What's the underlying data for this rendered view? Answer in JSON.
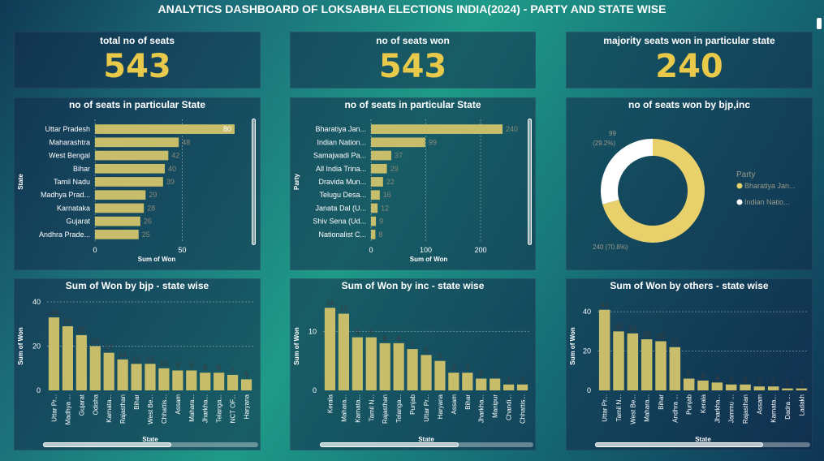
{
  "title": "ANALYTICS DASHBOARD OF LOKSABHA ELECTIONS INDIA(2024) - PARTY AND STATE WISE",
  "colors": {
    "bar": "#c8bd6a",
    "gold": "#e8c94a",
    "white": "#ffffff",
    "label": "#3c3c3c"
  },
  "cards": [
    {
      "label": "total no of seats",
      "value": "543"
    },
    {
      "label": "no of seats won",
      "value": "543"
    },
    {
      "label": "majority seats won in particular state",
      "value": "240"
    }
  ],
  "chart_data": [
    {
      "type": "bar",
      "orientation": "horizontal",
      "title": "no of seats in particular State",
      "ylabel": "State",
      "xlabel": "Sum of Won",
      "categories": [
        "Uttar Pradesh",
        "Maharashtra",
        "West Bengal",
        "Bihar",
        "Tamil Nadu",
        "Madhya Prad...",
        "Karnataka",
        "Gujarat",
        "Andhra Prade..."
      ],
      "values": [
        80,
        48,
        42,
        40,
        39,
        29,
        28,
        26,
        25
      ],
      "xlim": [
        0,
        80
      ],
      "xticks": [
        0,
        50
      ]
    },
    {
      "type": "bar",
      "orientation": "horizontal",
      "title": "no of seats in particular State",
      "ylabel": "Party",
      "xlabel": "Sum of Won",
      "categories": [
        "Bharatiya Jan...",
        "Indian Nation...",
        "Samajwadi Pa...",
        "All India Trina...",
        "Dravida Mun...",
        "Telugu Desa...",
        "Janata Dal (U...",
        "Shiv Sena (Ud...",
        "Nationalist C..."
      ],
      "values": [
        240,
        99,
        37,
        29,
        22,
        16,
        12,
        9,
        8
      ],
      "xlim": [
        0,
        240
      ],
      "xticks": [
        0,
        100,
        200
      ]
    },
    {
      "type": "pie",
      "style": "donut",
      "title": "no of seats won by bjp,inc",
      "legend_title": "Party",
      "legend_position": "right",
      "labels": [
        "Bharatiya Jan...",
        "Indian Natio..."
      ],
      "values": [
        240,
        99
      ],
      "percent_labels": [
        "240 (70.8%)",
        "99 (29.2%)"
      ],
      "colors": [
        "#e8d06a",
        "#ffffff"
      ]
    },
    {
      "type": "bar",
      "title": "Sum of Won by bjp - state wise",
      "xlabel": "State",
      "ylabel": "Sum of Won",
      "categories": [
        "Uttar Pr...",
        "Madhya ...",
        "Gujarat",
        "Odisha",
        "Karnata...",
        "Rajasthan",
        "Bihar",
        "West Be...",
        "Chhattis...",
        "Assam",
        "Mahara...",
        "Jharkha...",
        "Telanga...",
        "NCT OF...",
        "Haryana"
      ],
      "values": [
        33,
        29,
        25,
        20,
        17,
        14,
        12,
        12,
        10,
        9,
        9,
        8,
        8,
        7,
        5
      ],
      "ylim": [
        0,
        40
      ],
      "yticks": [
        0,
        20,
        40
      ]
    },
    {
      "type": "bar",
      "title": "Sum of Won by inc - state wise",
      "xlabel": "State",
      "ylabel": "Sum of Won",
      "categories": [
        "Kerala",
        "Mahara...",
        "Karnata...",
        "Tamil N...",
        "Rajasthan",
        "Telanga...",
        "Punjab",
        "Uttar Pr...",
        "Haryana",
        "Assam",
        "Bihar",
        "Jharkha...",
        "Manipur",
        "Chandi...",
        "Chhattis..."
      ],
      "values": [
        14,
        13,
        9,
        9,
        8,
        8,
        7,
        6,
        5,
        3,
        3,
        2,
        2,
        1,
        1
      ],
      "ylim": [
        0,
        15
      ],
      "yticks": [
        0,
        10
      ]
    },
    {
      "type": "bar",
      "title": "Sum of Won by others - state wise",
      "xlabel": "State",
      "ylabel": "Sum of Won",
      "categories": [
        "Uttar Pr...",
        "Tamil N...",
        "West Be...",
        "Mahara...",
        "Bihar",
        "Andhra ...",
        "Punjab",
        "Kerala",
        "Jharkha...",
        "Jammu ...",
        "Rajasthan",
        "Assam",
        "Karnata...",
        "Dadra ...",
        "Ladakh"
      ],
      "values": [
        41,
        30,
        29,
        26,
        25,
        22,
        6,
        5,
        4,
        3,
        3,
        2,
        2,
        1,
        1
      ],
      "ylim": [
        0,
        45
      ],
      "yticks": [
        0,
        20,
        40
      ]
    }
  ]
}
